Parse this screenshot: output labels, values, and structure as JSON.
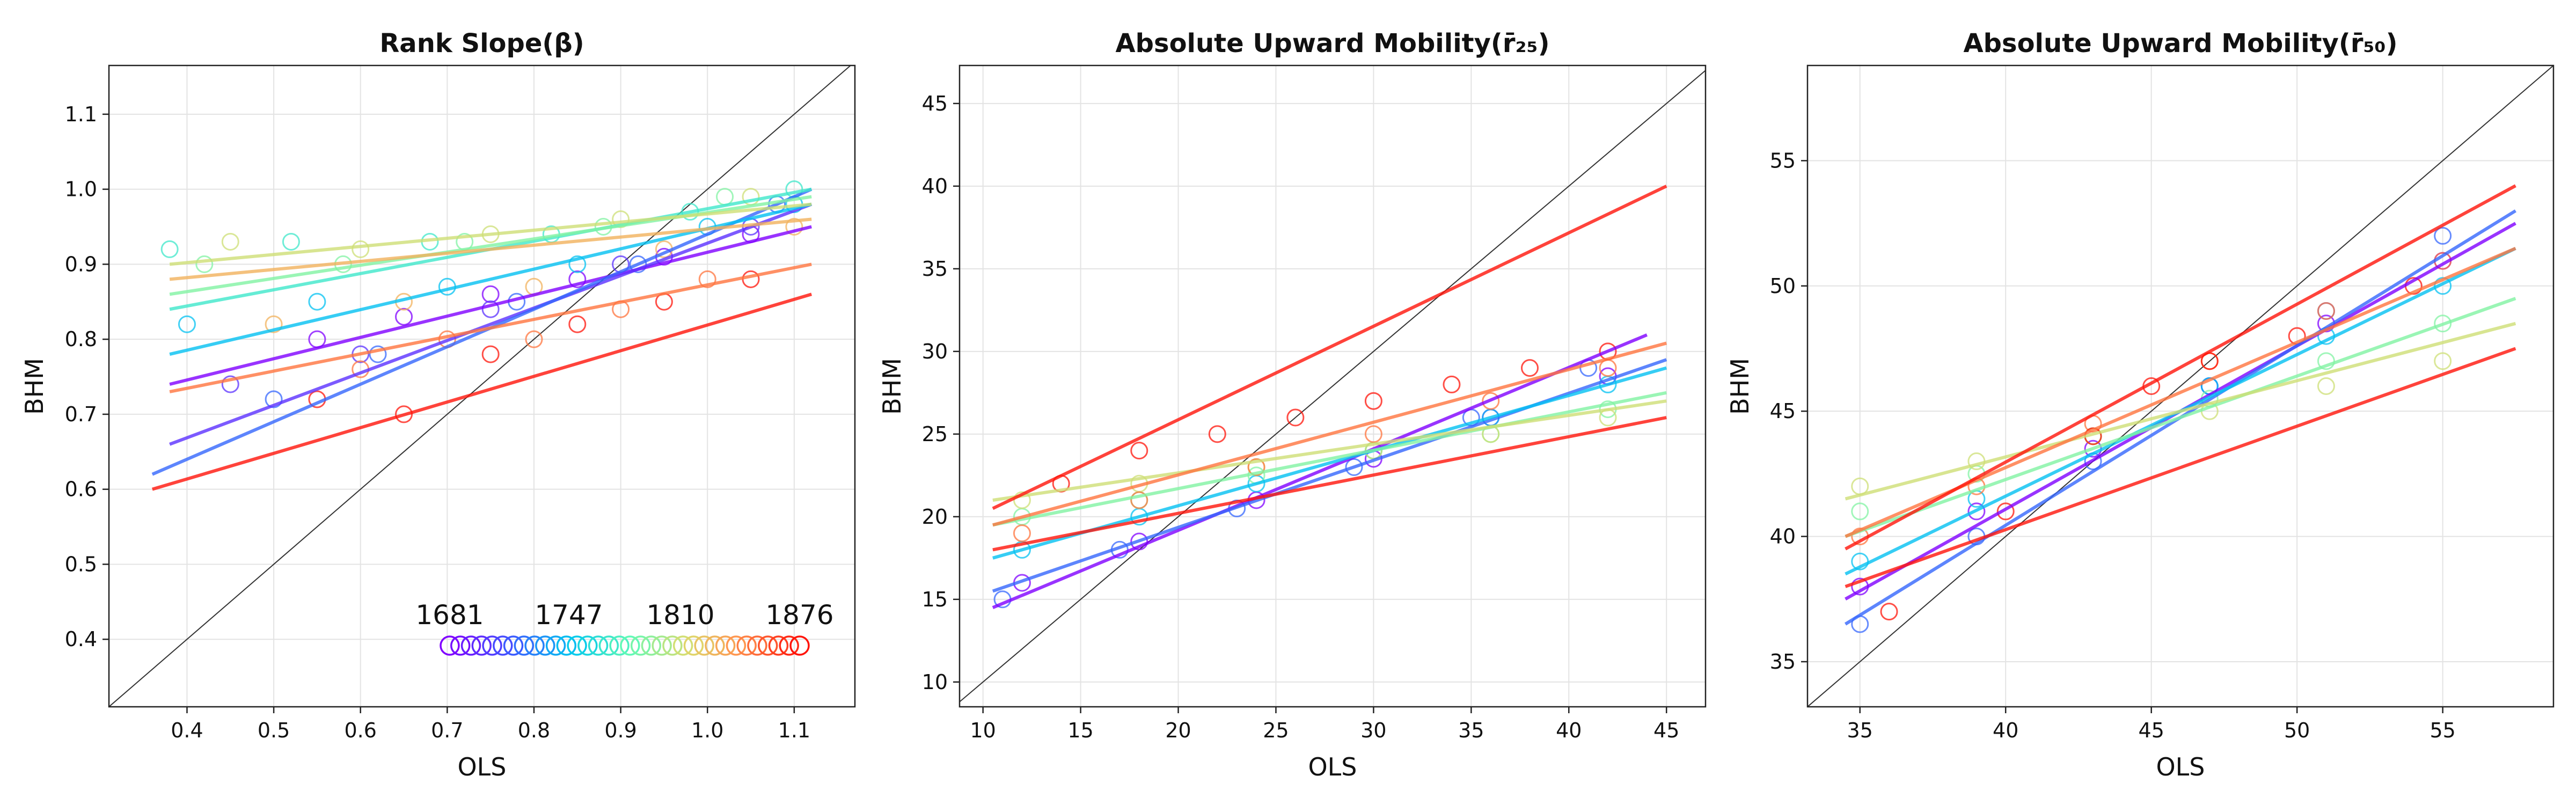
{
  "chart_data": [
    {
      "type": "scatter",
      "title": "Rank Slope",
      "title_symbol": "(β)",
      "xlabel": "OLS",
      "ylabel": "BHM",
      "xlim": [
        0.31,
        1.17
      ],
      "ylim": [
        0.31,
        1.165
      ],
      "xticks": [
        0.4,
        0.5,
        0.6,
        0.7,
        0.8,
        0.9,
        1.0,
        1.1
      ],
      "xtick_labels": [
        "0.4",
        "0.5",
        "0.6",
        "0.7",
        "0.8",
        "0.9",
        "1.0",
        "1.1"
      ],
      "yticks": [
        0.4,
        0.5,
        0.6,
        0.7,
        0.8,
        0.9,
        1.0,
        1.1
      ],
      "ytick_labels": [
        "0.4",
        "0.5",
        "0.6",
        "0.7",
        "0.8",
        "0.9",
        "1.0",
        "1.1"
      ],
      "grid": true,
      "diagonal": true,
      "colorbar": {
        "placement": "bottom-right",
        "labels": [
          "1681",
          "1747",
          "1810",
          "1876"
        ],
        "range": [
          1681,
          1876
        ]
      },
      "series": [
        {
          "year": 1681,
          "x": [
            0.55,
            0.65,
            0.75,
            0.85,
            0.95,
            1.05
          ],
          "y": [
            0.8,
            0.83,
            0.86,
            0.88,
            0.91,
            0.94
          ]
        },
        {
          "year": 1700,
          "x": [
            0.45,
            0.6,
            0.75,
            0.9,
            1.05
          ],
          "y": [
            0.74,
            0.78,
            0.84,
            0.9,
            0.95
          ]
        },
        {
          "year": 1720,
          "x": [
            0.5,
            0.62,
            0.78,
            0.92,
            1.08
          ],
          "y": [
            0.72,
            0.78,
            0.85,
            0.9,
            0.98
          ]
        },
        {
          "year": 1747,
          "x": [
            0.4,
            0.55,
            0.7,
            0.85,
            1.0,
            1.1
          ],
          "y": [
            0.82,
            0.85,
            0.87,
            0.9,
            0.95,
            0.98
          ]
        },
        {
          "year": 1770,
          "x": [
            0.38,
            0.52,
            0.68,
            0.82,
            0.98,
            1.1
          ],
          "y": [
            0.92,
            0.93,
            0.93,
            0.94,
            0.97,
            1.0
          ]
        },
        {
          "year": 1790,
          "x": [
            0.42,
            0.58,
            0.72,
            0.88,
            1.02
          ],
          "y": [
            0.9,
            0.9,
            0.93,
            0.95,
            0.99
          ]
        },
        {
          "year": 1810,
          "x": [
            0.45,
            0.6,
            0.75,
            0.9,
            1.05
          ],
          "y": [
            0.93,
            0.92,
            0.94,
            0.96,
            0.99
          ]
        },
        {
          "year": 1830,
          "x": [
            0.5,
            0.65,
            0.8,
            0.95,
            1.1
          ],
          "y": [
            0.82,
            0.85,
            0.87,
            0.92,
            0.95
          ]
        },
        {
          "year": 1850,
          "x": [
            0.6,
            0.7,
            0.8,
            0.9,
            1.0
          ],
          "y": [
            0.76,
            0.8,
            0.8,
            0.84,
            0.88
          ]
        },
        {
          "year": 1876,
          "x": [
            0.55,
            0.65,
            0.75,
            0.85,
            0.95,
            1.05
          ],
          "y": [
            0.72,
            0.7,
            0.78,
            0.82,
            0.85,
            0.88
          ]
        }
      ],
      "fit_lines": [
        {
          "year": 1681,
          "x": [
            0.38,
            1.12
          ],
          "y": [
            0.74,
            0.95
          ]
        },
        {
          "year": 1700,
          "x": [
            0.38,
            1.12
          ],
          "y": [
            0.66,
            0.98
          ]
        },
        {
          "year": 1720,
          "x": [
            0.36,
            1.12
          ],
          "y": [
            0.62,
            1.0
          ]
        },
        {
          "year": 1747,
          "x": [
            0.38,
            1.12
          ],
          "y": [
            0.78,
            0.98
          ]
        },
        {
          "year": 1770,
          "x": [
            0.38,
            1.12
          ],
          "y": [
            0.84,
            1.0
          ]
        },
        {
          "year": 1790,
          "x": [
            0.38,
            1.12
          ],
          "y": [
            0.86,
            0.99
          ]
        },
        {
          "year": 1810,
          "x": [
            0.38,
            1.12
          ],
          "y": [
            0.9,
            0.98
          ]
        },
        {
          "year": 1830,
          "x": [
            0.38,
            1.12
          ],
          "y": [
            0.88,
            0.96
          ]
        },
        {
          "year": 1850,
          "x": [
            0.38,
            1.12
          ],
          "y": [
            0.73,
            0.9
          ]
        },
        {
          "year": 1876,
          "x": [
            0.36,
            1.12
          ],
          "y": [
            0.6,
            0.86
          ]
        }
      ]
    },
    {
      "type": "scatter",
      "title": "Absolute Upward Mobility",
      "title_symbol": "(r̄₂₅)",
      "xlabel": "OLS",
      "ylabel": "BHM",
      "xlim": [
        8.8,
        47.0
      ],
      "ylim": [
        8.5,
        47.3
      ],
      "xticks": [
        10,
        15,
        20,
        25,
        30,
        35,
        40,
        45
      ],
      "xtick_labels": [
        "10",
        "15",
        "20",
        "25",
        "30",
        "35",
        "40",
        "45"
      ],
      "yticks": [
        10,
        15,
        20,
        25,
        30,
        35,
        40,
        45
      ],
      "ytick_labels": [
        "10",
        "15",
        "20",
        "25",
        "30",
        "35",
        "40",
        "45"
      ],
      "grid": true,
      "diagonal": true,
      "series": [
        {
          "year": 1681,
          "x": [
            12,
            18,
            24,
            30,
            36,
            42
          ],
          "y": [
            16,
            18.5,
            21,
            23.5,
            26,
            28.5
          ]
        },
        {
          "year": 1720,
          "x": [
            11,
            17,
            23,
            29,
            35,
            41
          ],
          "y": [
            15,
            18,
            20.5,
            23,
            26,
            29
          ]
        },
        {
          "year": 1747,
          "x": [
            12,
            18,
            24,
            30,
            36,
            42
          ],
          "y": [
            18,
            20,
            22,
            24,
            26,
            28
          ]
        },
        {
          "year": 1790,
          "x": [
            12,
            18,
            24,
            30,
            36,
            42
          ],
          "y": [
            20,
            21,
            22.5,
            24,
            25,
            26.5
          ]
        },
        {
          "year": 1810,
          "x": [
            12,
            18,
            24,
            30,
            36,
            42
          ],
          "y": [
            21,
            22,
            23,
            24,
            25,
            26
          ]
        },
        {
          "year": 1850,
          "x": [
            12,
            18,
            24,
            30,
            36,
            42
          ],
          "y": [
            19,
            21,
            23,
            25,
            27,
            29
          ]
        },
        {
          "year": 1876,
          "x": [
            14,
            18,
            22,
            26,
            30,
            34,
            38,
            42
          ],
          "y": [
            22,
            24,
            25,
            26,
            27,
            28,
            29,
            30
          ]
        }
      ],
      "fit_lines": [
        {
          "year": 1681,
          "x": [
            10.5,
            44
          ],
          "y": [
            14.5,
            31.0
          ]
        },
        {
          "year": 1720,
          "x": [
            10.5,
            45
          ],
          "y": [
            15.5,
            29.5
          ]
        },
        {
          "year": 1747,
          "x": [
            10.5,
            45
          ],
          "y": [
            17.5,
            29.0
          ]
        },
        {
          "year": 1790,
          "x": [
            10.5,
            45
          ],
          "y": [
            19.5,
            27.5
          ]
        },
        {
          "year": 1810,
          "x": [
            10.5,
            45
          ],
          "y": [
            21.0,
            27.0
          ]
        },
        {
          "year": 1850,
          "x": [
            10.5,
            45
          ],
          "y": [
            19.5,
            30.5
          ]
        },
        {
          "year": 1876,
          "x": [
            10.5,
            45
          ],
          "y": [
            20.5,
            40.0
          ]
        },
        {
          "year": 1876,
          "x": [
            10.5,
            45
          ],
          "y": [
            18.0,
            26.0
          ]
        }
      ]
    },
    {
      "type": "scatter",
      "title": "Absolute Upward Mobility",
      "title_symbol": "(r̄₅₀)",
      "xlabel": "OLS",
      "ylabel": "BHM",
      "xlim": [
        33.2,
        58.8
      ],
      "ylim": [
        33.2,
        58.8
      ],
      "xticks": [
        35,
        40,
        45,
        50,
        55
      ],
      "xtick_labels": [
        "35",
        "40",
        "45",
        "50",
        "55"
      ],
      "yticks": [
        35,
        40,
        45,
        50,
        55
      ],
      "ytick_labels": [
        "35",
        "40",
        "45",
        "50",
        "55"
      ],
      "grid": true,
      "diagonal": true,
      "series": [
        {
          "year": 1681,
          "x": [
            35,
            39,
            43,
            47,
            51,
            55
          ],
          "y": [
            38,
            41,
            43.5,
            46,
            48.5,
            51
          ]
        },
        {
          "year": 1720,
          "x": [
            35,
            39,
            43,
            47,
            51,
            55
          ],
          "y": [
            36.5,
            40,
            43,
            46,
            49,
            52
          ]
        },
        {
          "year": 1747,
          "x": [
            35,
            39,
            43,
            47,
            51,
            55
          ],
          "y": [
            39,
            41.5,
            44,
            46,
            48,
            50
          ]
        },
        {
          "year": 1790,
          "x": [
            35,
            39,
            43,
            47,
            51,
            55
          ],
          "y": [
            41,
            42.5,
            44,
            45.5,
            47,
            48.5
          ]
        },
        {
          "year": 1810,
          "x": [
            35,
            39,
            43,
            47,
            51,
            55
          ],
          "y": [
            42,
            43,
            44,
            45,
            46,
            47
          ]
        },
        {
          "year": 1850,
          "x": [
            35,
            39,
            43,
            47,
            51,
            55
          ],
          "y": [
            40,
            42,
            44.5,
            47,
            49,
            51
          ]
        },
        {
          "year": 1876,
          "x": [
            36,
            40,
            43,
            45,
            47,
            50,
            54
          ],
          "y": [
            37,
            41,
            44,
            46,
            47,
            48,
            50
          ]
        }
      ],
      "fit_lines": [
        {
          "year": 1681,
          "x": [
            34.5,
            57.5
          ],
          "y": [
            37.5,
            52.5
          ]
        },
        {
          "year": 1720,
          "x": [
            34.5,
            57.5
          ],
          "y": [
            36.5,
            53.0
          ]
        },
        {
          "year": 1747,
          "x": [
            34.5,
            57.5
          ],
          "y": [
            38.5,
            51.5
          ]
        },
        {
          "year": 1790,
          "x": [
            34.5,
            57.5
          ],
          "y": [
            40.0,
            49.5
          ]
        },
        {
          "year": 1810,
          "x": [
            34.5,
            57.5
          ],
          "y": [
            41.5,
            48.5
          ]
        },
        {
          "year": 1850,
          "x": [
            34.5,
            57.5
          ],
          "y": [
            40.0,
            51.5
          ]
        },
        {
          "year": 1876,
          "x": [
            34.5,
            57.5
          ],
          "y": [
            39.5,
            54.0
          ]
        },
        {
          "year": 1876,
          "x": [
            34.5,
            57.5
          ],
          "y": [
            38.0,
            47.5
          ]
        }
      ]
    }
  ]
}
